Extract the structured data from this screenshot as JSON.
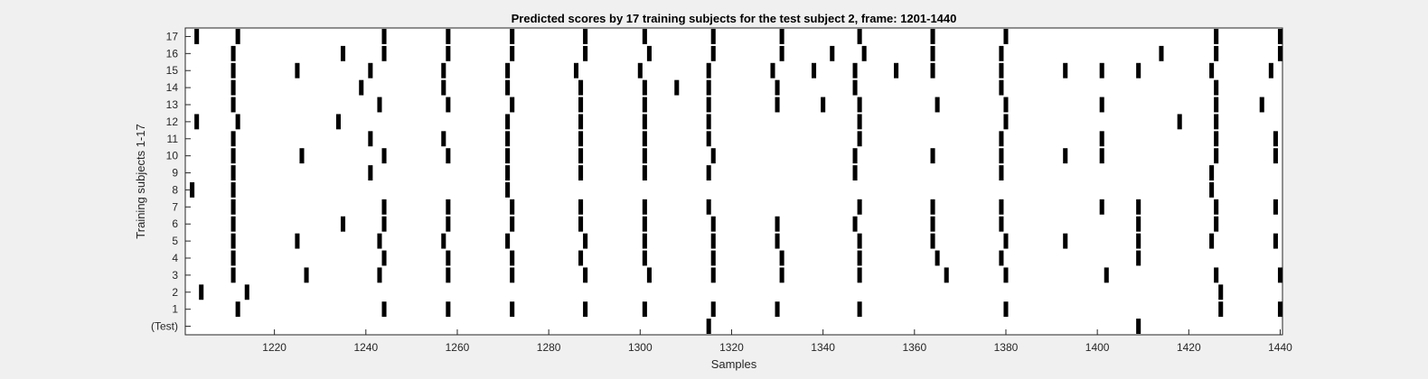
{
  "chart_data": {
    "type": "heatmap",
    "title": "Predicted scores by 17 training subjects for the test subject 2, frame: 1201-1440",
    "xlabel": "Samples",
    "ylabel": "Training subjects 1-17",
    "xlim": [
      1201,
      1440
    ],
    "xticks": [
      1220,
      1240,
      1260,
      1280,
      1300,
      1320,
      1340,
      1360,
      1380,
      1400,
      1420,
      1440
    ],
    "rows": [
      "(Test)",
      "1",
      "2",
      "3",
      "4",
      "5",
      "6",
      "7",
      "8",
      "9",
      "10",
      "11",
      "12",
      "13",
      "14",
      "15",
      "16",
      "17"
    ],
    "colors": {
      "background": "#f0f0f0",
      "axes": "#ffffff",
      "mark": "#000000",
      "axis_line": "#262626"
    },
    "marks": [
      {
        "row": "(Test)",
        "x": [
          1315,
          1409
        ]
      },
      {
        "row": "1",
        "x": [
          1212,
          1244,
          1258,
          1272,
          1288,
          1301,
          1316,
          1330,
          1348,
          1380,
          1427,
          1440
        ]
      },
      {
        "row": "2",
        "x": [
          1204,
          1214,
          1427
        ]
      },
      {
        "row": "3",
        "x": [
          1211,
          1227,
          1243,
          1258,
          1272,
          1288,
          1302,
          1316,
          1331,
          1348,
          1367,
          1380,
          1402,
          1426,
          1440
        ]
      },
      {
        "row": "4",
        "x": [
          1211,
          1244,
          1258,
          1272,
          1287,
          1301,
          1316,
          1331,
          1348,
          1365,
          1379,
          1409
        ]
      },
      {
        "row": "5",
        "x": [
          1211,
          1225,
          1243,
          1257,
          1271,
          1288,
          1301,
          1316,
          1330,
          1348,
          1364,
          1380,
          1393,
          1409,
          1425,
          1439
        ]
      },
      {
        "row": "6",
        "x": [
          1211,
          1235,
          1244,
          1258,
          1272,
          1287,
          1301,
          1316,
          1330,
          1347,
          1364,
          1379,
          1409,
          1426
        ]
      },
      {
        "row": "7",
        "x": [
          1211,
          1244,
          1258,
          1272,
          1287,
          1301,
          1315,
          1348,
          1364,
          1379,
          1401,
          1409,
          1426,
          1439
        ]
      },
      {
        "row": "8",
        "x": [
          1202,
          1211,
          1271,
          1425
        ]
      },
      {
        "row": "9",
        "x": [
          1211,
          1241,
          1271,
          1287,
          1301,
          1315,
          1347,
          1379,
          1425
        ]
      },
      {
        "row": "10",
        "x": [
          1211,
          1226,
          1244,
          1258,
          1271,
          1287,
          1301,
          1316,
          1347,
          1364,
          1379,
          1393,
          1401,
          1426,
          1439
        ]
      },
      {
        "row": "11",
        "x": [
          1211,
          1241,
          1257,
          1271,
          1287,
          1301,
          1315,
          1348,
          1379,
          1401,
          1426,
          1439
        ]
      },
      {
        "row": "12",
        "x": [
          1203,
          1212,
          1234,
          1271,
          1287,
          1301,
          1315,
          1348,
          1380,
          1418,
          1426
        ]
      },
      {
        "row": "13",
        "x": [
          1211,
          1243,
          1258,
          1272,
          1287,
          1301,
          1315,
          1330,
          1340,
          1348,
          1365,
          1380,
          1401,
          1426,
          1436
        ]
      },
      {
        "row": "14",
        "x": [
          1211,
          1239,
          1257,
          1271,
          1287,
          1301,
          1308,
          1315,
          1330,
          1347,
          1379,
          1426
        ]
      },
      {
        "row": "15",
        "x": [
          1211,
          1225,
          1241,
          1257,
          1271,
          1286,
          1300,
          1315,
          1329,
          1338,
          1347,
          1356,
          1364,
          1379,
          1393,
          1401,
          1409,
          1425,
          1438
        ]
      },
      {
        "row": "16",
        "x": [
          1211,
          1235,
          1244,
          1258,
          1272,
          1288,
          1302,
          1316,
          1331,
          1342,
          1349,
          1364,
          1379,
          1414,
          1426,
          1440
        ]
      },
      {
        "row": "17",
        "x": [
          1203,
          1212,
          1244,
          1258,
          1272,
          1288,
          1301,
          1316,
          1331,
          1348,
          1364,
          1380,
          1426,
          1440
        ]
      }
    ]
  }
}
